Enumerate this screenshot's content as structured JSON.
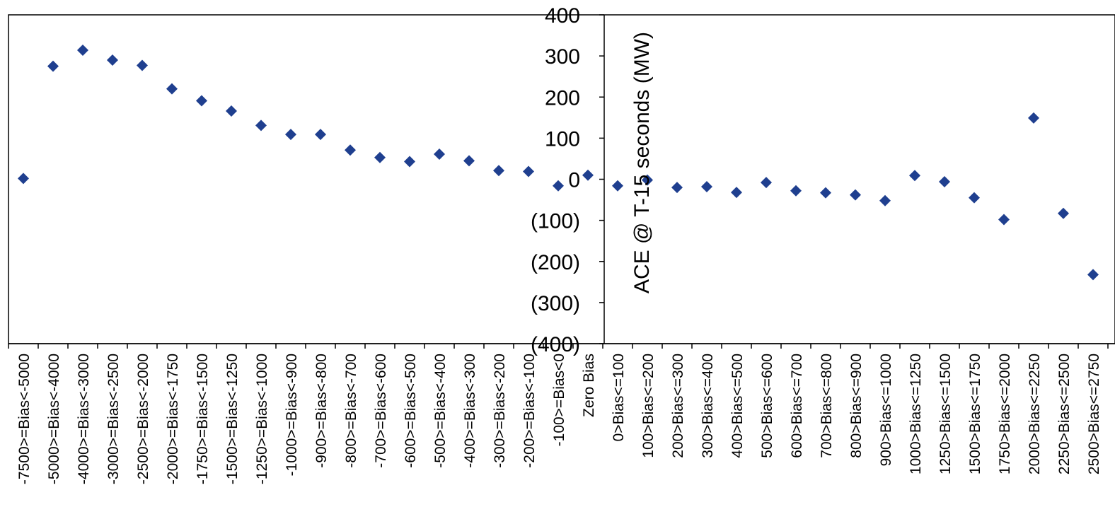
{
  "chart_data": {
    "type": "scatter",
    "title": "",
    "xlabel": "",
    "ylabel": "ACE @ T-15 seconds  (MW)",
    "ylim": [
      -400,
      400
    ],
    "y_ticks": [
      400,
      300,
      200,
      100,
      0,
      -100,
      -200,
      -300,
      -400
    ],
    "y_tick_labels": [
      "400",
      "300",
      "200",
      "100",
      "0",
      "(100)",
      "(200)",
      "(300)",
      "(400)"
    ],
    "grid": false,
    "legend": "none",
    "marker": "diamond",
    "marker_color": "#1F3F8F",
    "categories": [
      "-7500>=Bias<-5000",
      "-5000>=Bias<-4000",
      "-4000>=Bias<-3000",
      "-3000>=Bias<-2500",
      "-2500>=Bias<-2000",
      "-2000>=Bias<-1750",
      "-1750>=Bias<-1500",
      "-1500>=Bias<-1250",
      "-1250>=Bias<-1000",
      "-1000>=Bias<-900",
      "-900>=Bias<-800",
      "-800>=Bias<-700",
      "-700>=Bias<-600",
      "-600>=Bias<-500",
      "-500>=Bias<-400",
      "-400>=Bias<-300",
      "-300>=Bias<-200",
      "-200>=Bias<-100",
      "-100>=Bias<0",
      "Zero Bias",
      "0>Bias<=100",
      "100>Bias<=200",
      "200>Bias<=300",
      "300>Bias<=400",
      "400>Bias<=500",
      "500>Bias<=600",
      "600>Bias<=700",
      "700>Bias<=800",
      "800>Bias<=900",
      "900>Bias<=1000",
      "1000>Bias<=1250",
      "1250>Bias<=1500",
      "1500>Bias<=1750",
      "1750>Bias<=2000",
      "2000>Bias<=2250",
      "2250>Bias<=2500",
      "2500>Bias<=2750"
    ],
    "values": [
      2,
      275,
      314,
      290,
      277,
      220,
      191,
      166,
      131,
      109,
      109,
      71,
      53,
      43,
      61,
      45,
      21,
      19,
      -16,
      10,
      -16,
      -2,
      -20,
      -18,
      -32,
      -8,
      -28,
      -33,
      -38,
      -52,
      9,
      -6,
      -45,
      -98,
      149,
      -83,
      -232
    ]
  }
}
